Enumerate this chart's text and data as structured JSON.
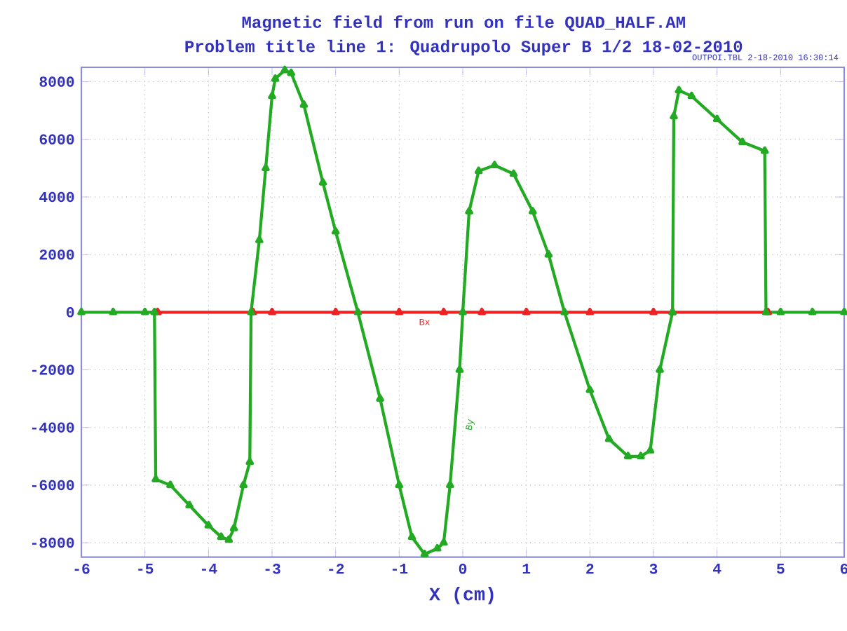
{
  "chart_data": {
    "type": "line",
    "title": "Magnetic field from run on file QUAD_HALF.AM",
    "subtitle": "Problem title line 1: Quadrupolo Super B 1/2 18-02-2010",
    "xlabel": "X (cm)",
    "annotations": [
      "OUTPOI.TBL   2-18-2010   16:30:14"
    ],
    "xlim": [
      -6,
      6
    ],
    "ylim": [
      -8500,
      8500
    ],
    "xticks": [
      -6,
      -5,
      -4,
      -3,
      -2,
      -1,
      0,
      1,
      2,
      3,
      4,
      5,
      6
    ],
    "yticks": [
      -8000,
      -6000,
      -4000,
      -2000,
      0,
      2000,
      4000,
      6000,
      8000
    ],
    "grid": true,
    "marker": "triangle",
    "series": [
      {
        "name": "Bx",
        "color": "#ee2222",
        "x": [
          -4.8,
          -3.3,
          -3.0,
          -2.0,
          -1.0,
          -0.3,
          0.3,
          1.0,
          2.0,
          3.0,
          3.3,
          4.8
        ],
        "values": [
          0,
          0,
          0,
          0,
          0,
          0,
          0,
          0,
          0,
          0,
          0,
          0
        ]
      },
      {
        "name": "By",
        "color": "#22aa22",
        "x": [
          -6,
          -5.5,
          -5,
          -4.85,
          -4.83,
          -4.6,
          -4.3,
          -4.0,
          -3.8,
          -3.68,
          -3.6,
          -3.45,
          -3.35,
          -3.33,
          -3.2,
          -3.1,
          -3.0,
          -2.95,
          -2.8,
          -2.7,
          -2.5,
          -2.2,
          -2.0,
          -1.65,
          -1.3,
          -1.0,
          -0.8,
          -0.6,
          -0.4,
          -0.3,
          -0.2,
          -0.05,
          0.0,
          0.1,
          0.25,
          0.5,
          0.8,
          1.1,
          1.35,
          1.6,
          2.0,
          2.3,
          2.6,
          2.8,
          2.95,
          3.1,
          3.3,
          3.32,
          3.4,
          3.6,
          4.0,
          4.4,
          4.75,
          4.77,
          5,
          5.5,
          6
        ],
        "values": [
          0,
          0,
          0,
          0,
          -5800,
          -6000,
          -6700,
          -7400,
          -7800,
          -7900,
          -7500,
          -6000,
          -5200,
          0,
          2500,
          5000,
          7500,
          8100,
          8400,
          8300,
          7200,
          4500,
          2800,
          0,
          -3000,
          -6000,
          -7800,
          -8400,
          -8200,
          -8000,
          -6000,
          -2000,
          0,
          3500,
          4900,
          5100,
          4800,
          3500,
          2000,
          0,
          -2700,
          -4400,
          -5000,
          -5000,
          -4800,
          -2000,
          0,
          6800,
          7700,
          7500,
          6700,
          5900,
          5600,
          0,
          0,
          0,
          0
        ]
      }
    ]
  }
}
